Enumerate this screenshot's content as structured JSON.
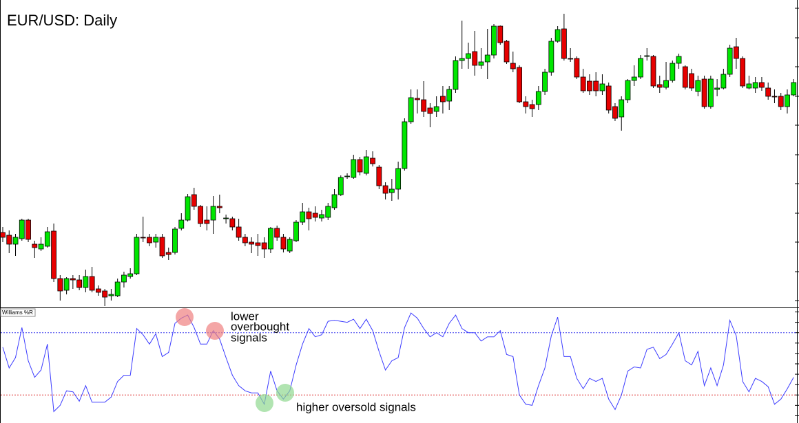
{
  "chart_data": [
    {
      "type": "candlestick",
      "title": "EUR/USD: Daily",
      "open": [
        112,
        108,
        95,
        103,
        130,
        95,
        88,
        92,
        114,
        45,
        28,
        45,
        43,
        32,
        48,
        30,
        27,
        20,
        20,
        40,
        48,
        52,
        105,
        105,
        98,
        105,
        83,
        83,
        118,
        130,
        167,
        150,
        130,
        130,
        150,
        132,
        132,
        120,
        105,
        98,
        97,
        97,
        88,
        118,
        105,
        85,
        100,
        127,
        142,
        140,
        133,
        134,
        148,
        167,
        193,
        192,
        218,
        198,
        220,
        207,
        180,
        170,
        175,
        205,
        273,
        307,
        305,
        293,
        288,
        310,
        303,
        320,
        362,
        365,
        375,
        355,
        360,
        370,
        412,
        390,
        358,
        352,
        302,
        298,
        298,
        317,
        345,
        390,
        408,
        365,
        365,
        338,
        332,
        332,
        318,
        325,
        295,
        280,
        305,
        333,
        338,
        368,
        368,
        327,
        323,
        333,
        358,
        353,
        343,
        317,
        335,
        295,
        320,
        322,
        342,
        382,
        365,
        322,
        322,
        330,
        322,
        310,
        310,
        295,
        312
      ],
      "high": [
        120,
        115,
        110,
        132,
        132,
        100,
        105,
        120,
        125,
        50,
        47,
        50,
        50,
        58,
        62,
        35,
        30,
        30,
        45,
        55,
        60,
        110,
        135,
        110,
        110,
        110,
        90,
        120,
        140,
        168,
        177,
        152,
        150,
        165,
        167,
        138,
        135,
        132,
        110,
        105,
        110,
        105,
        120,
        122,
        110,
        105,
        130,
        155,
        148,
        150,
        145,
        155,
        175,
        195,
        198,
        225,
        222,
        232,
        230,
        210,
        185,
        190,
        215,
        278,
        320,
        320,
        332,
        300,
        310,
        325,
        325,
        368,
        420,
        388,
        405,
        380,
        408,
        415,
        413,
        392,
        375,
        355,
        310,
        305,
        325,
        350,
        395,
        412,
        430,
        380,
        368,
        350,
        342,
        345,
        342,
        330,
        300,
        310,
        335,
        355,
        370,
        380,
        370,
        340,
        360,
        362,
        372,
        355,
        350,
        340,
        340,
        340,
        335,
        350,
        385,
        395,
        368,
        340,
        338,
        338,
        330,
        320,
        315,
        320,
        335
      ],
      "low": [
        98,
        82,
        78,
        100,
        98,
        75,
        85,
        90,
        40,
        13,
        22,
        30,
        28,
        25,
        25,
        20,
        5,
        13,
        18,
        32,
        45,
        50,
        98,
        92,
        90,
        75,
        72,
        80,
        115,
        128,
        145,
        120,
        115,
        110,
        140,
        125,
        115,
        100,
        92,
        82,
        78,
        75,
        82,
        100,
        83,
        82,
        98,
        123,
        115,
        128,
        128,
        130,
        145,
        165,
        190,
        190,
        195,
        195,
        208,
        175,
        160,
        158,
        160,
        202,
        270,
        285,
        280,
        265,
        280,
        285,
        290,
        315,
        350,
        350,
        340,
        350,
        335,
        365,
        385,
        357,
        345,
        300,
        285,
        280,
        290,
        312,
        340,
        388,
        362,
        360,
        335,
        315,
        312,
        310,
        312,
        285,
        274,
        260,
        300,
        325,
        335,
        362,
        322,
        315,
        320,
        330,
        350,
        320,
        318,
        310,
        292,
        292,
        310,
        320,
        338,
        350,
        322,
        320,
        315,
        318,
        305,
        300,
        290,
        285,
        310
      ],
      "close": [
        105,
        95,
        105,
        130,
        102,
        90,
        95,
        113,
        45,
        27,
        45,
        43,
        32,
        48,
        28,
        25,
        18,
        22,
        40,
        50,
        52,
        105,
        104,
        97,
        105,
        78,
        80,
        117,
        130,
        164,
        150,
        125,
        125,
        150,
        148,
        133,
        120,
        105,
        97,
        95,
        93,
        88,
        118,
        105,
        88,
        102,
        127,
        142,
        132,
        134,
        138,
        150,
        167,
        192,
        194,
        218,
        200,
        222,
        212,
        180,
        169,
        175,
        205,
        273,
        308,
        305,
        288,
        285,
        295,
        302,
        320,
        362,
        365,
        372,
        355,
        360,
        370,
        412,
        388,
        360,
        350,
        302,
        295,
        292,
        317,
        345,
        390,
        407,
        365,
        364,
        338,
        318,
        318,
        318,
        328,
        290,
        278,
        305,
        333,
        338,
        365,
        369,
        325,
        323,
        333,
        358,
        368,
        323,
        322,
        333,
        295,
        335,
        322,
        342,
        380,
        365,
        325,
        328,
        330,
        323,
        310,
        309,
        295,
        312,
        330
      ],
      "up_color": "#00e600",
      "down_color": "#e60000",
      "ylim": [
        3,
        450
      ],
      "yticks": [
        13,
        55,
        98,
        140,
        183,
        225,
        268,
        310,
        353,
        395,
        438
      ]
    },
    {
      "type": "line",
      "title": "Williams %R",
      "values": [
        -34,
        -54,
        -44,
        -15,
        -47,
        -63,
        -56,
        -31,
        -96,
        -90,
        -76,
        -77,
        -86,
        -71,
        -87,
        -87,
        -87,
        -82,
        -67,
        -61,
        -61,
        -16,
        -22,
        -31,
        -21,
        -43,
        -39,
        -11,
        -6,
        -3,
        -15,
        -31,
        -31,
        -18,
        -26,
        -44,
        -61,
        -71,
        -76,
        -78,
        -78,
        -89,
        -57,
        -76,
        -84,
        -76,
        -51,
        -31,
        -16,
        -24,
        -22,
        -9,
        -8,
        -9,
        -10,
        -7,
        -16,
        -7,
        -18,
        -38,
        -56,
        -47,
        -44,
        -15,
        -1,
        -6,
        -16,
        -24,
        -20,
        -24,
        -11,
        -3,
        -16,
        -20,
        -20,
        -28,
        -24,
        -24,
        -18,
        -41,
        -43,
        -80,
        -89,
        -90,
        -71,
        -54,
        -23,
        -5,
        -43,
        -43,
        -64,
        -74,
        -64,
        -67,
        -64,
        -84,
        -94,
        -80,
        -57,
        -53,
        -54,
        -36,
        -34,
        -45,
        -41,
        -31,
        -20,
        -47,
        -51,
        -38,
        -71,
        -54,
        -71,
        -51,
        -8,
        -23,
        -67,
        -77,
        -64,
        -67,
        -72,
        -89,
        -84,
        -74,
        -63
      ],
      "color": "#3b3bff",
      "ylim": [
        -107,
        3
      ],
      "yticks": [
        0,
        -10,
        -20,
        -30,
        -40,
        -50,
        -60,
        -70,
        -80,
        -90,
        -100
      ],
      "levels": [
        {
          "value": -20,
          "color": "#3333ee"
        },
        {
          "value": -80,
          "color": "#dd3333"
        }
      ],
      "annotations": [
        {
          "lines": [
            "lower",
            "overbought",
            "signals"
          ]
        },
        {
          "lines": [
            "higher oversold signals"
          ]
        }
      ]
    }
  ]
}
